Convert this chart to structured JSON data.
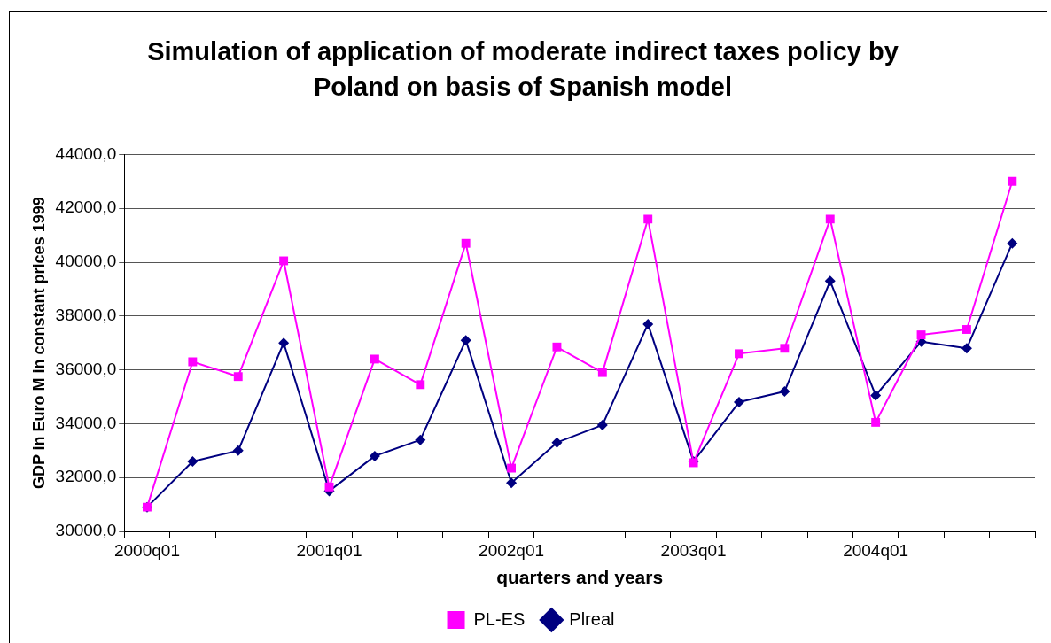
{
  "chart_data": {
    "type": "line",
    "title": "Simulation of application of moderate indirect taxes policy by Poland on basis of Spanish model",
    "xlabel": "quarters and years",
    "ylabel": "GDP in Euro M in constant prices 1999",
    "categories": [
      "2000q01",
      null,
      null,
      null,
      "2001q01",
      null,
      null,
      null,
      "2002q01",
      null,
      null,
      null,
      "2003q01",
      null,
      null,
      null,
      "2004q01",
      null,
      null,
      null
    ],
    "series": [
      {
        "name": "Plreal",
        "color": "#000080",
        "marker": "diamond",
        "values": [
          30900,
          32600,
          33000,
          37000,
          31500,
          32800,
          33400,
          37100,
          31800,
          33300,
          33950,
          37700,
          32600,
          34800,
          35200,
          39300,
          35050,
          37050,
          36800,
          40700
        ]
      },
      {
        "name": "PL-ES",
        "color": "#ff00ff",
        "marker": "square",
        "values": [
          30900,
          36300,
          35750,
          40050,
          31650,
          36400,
          35450,
          40700,
          32350,
          36850,
          35900,
          41600,
          32550,
          36600,
          36800,
          41600,
          34050,
          37300,
          37500,
          43000
        ]
      }
    ],
    "ylim": [
      30000,
      44000
    ],
    "yticks": [
      {
        "value": 30000,
        "label": "30000,0"
      },
      {
        "value": 32000,
        "label": "32000,0"
      },
      {
        "value": 34000,
        "label": "34000,0"
      },
      {
        "value": 36000,
        "label": "36000,0"
      },
      {
        "value": 38000,
        "label": "38000,0"
      },
      {
        "value": 40000,
        "label": "40000,0"
      },
      {
        "value": 42000,
        "label": "42000,0"
      },
      {
        "value": 44000,
        "label": "44000,0"
      }
    ],
    "grid": "y",
    "legend": "bottom",
    "line_style": "solid"
  }
}
